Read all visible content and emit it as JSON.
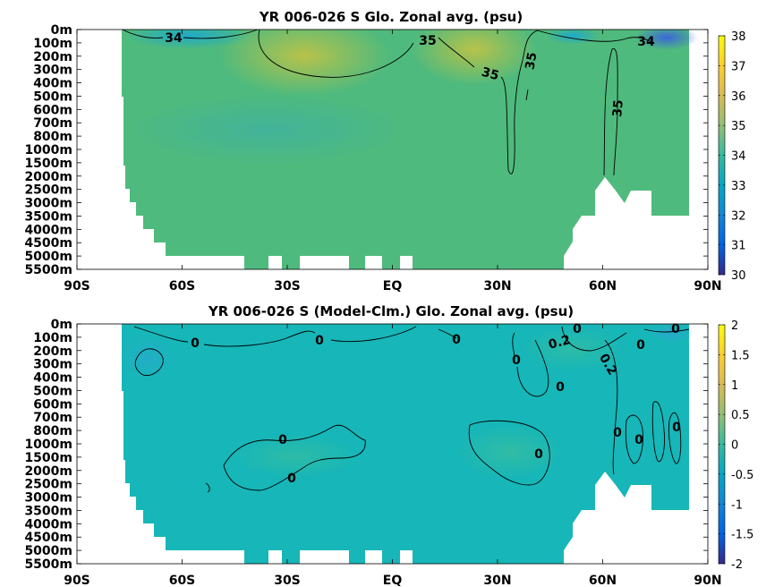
{
  "chart_data": [
    {
      "type": "heatmap",
      "title": "YR 006-026 S Glo. Zonal avg. (psu)",
      "x_ticks": [
        "90S",
        "60S",
        "30S",
        "EQ",
        "30N",
        "60N",
        "90N"
      ],
      "y_ticks": [
        "0m",
        "100m",
        "200m",
        "300m",
        "400m",
        "500m",
        "600m",
        "700m",
        "800m",
        "1000m",
        "1500m",
        "2000m",
        "2500m",
        "3000m",
        "3500m",
        "4000m",
        "4500m",
        "5000m",
        "5500m"
      ],
      "colorbar": {
        "min": 30,
        "max": 38,
        "ticks": [
          "30",
          "31",
          "32",
          "33",
          "34",
          "35",
          "36",
          "37",
          "38"
        ]
      },
      "contour_labels": [
        "34",
        "35",
        "35",
        "35",
        "35",
        "34"
      ],
      "colormap": "parula"
    },
    {
      "type": "heatmap",
      "title": "YR 006-026 S (Model-Clm.) Glo. Zonal avg. (psu)",
      "x_ticks": [
        "90S",
        "60S",
        "30S",
        "EQ",
        "30N",
        "60N",
        "90N"
      ],
      "y_ticks": [
        "0m",
        "100m",
        "200m",
        "300m",
        "400m",
        "500m",
        "600m",
        "700m",
        "800m",
        "1000m",
        "1500m",
        "2000m",
        "2500m",
        "3000m",
        "3500m",
        "4000m",
        "4500m",
        "5000m",
        "5500m"
      ],
      "colorbar": {
        "min": -2,
        "max": 2,
        "ticks": [
          "-2",
          "-1.5",
          "-1",
          "-0.5",
          "0",
          "0.5",
          "1",
          "1.5",
          "2"
        ]
      },
      "contour_labels": [
        "0",
        "0",
        "0",
        "0",
        "0",
        "0",
        "0",
        "0",
        "0",
        "0",
        "0",
        "0",
        "0",
        "0.2",
        "0.2"
      ],
      "colormap": "parula"
    }
  ]
}
